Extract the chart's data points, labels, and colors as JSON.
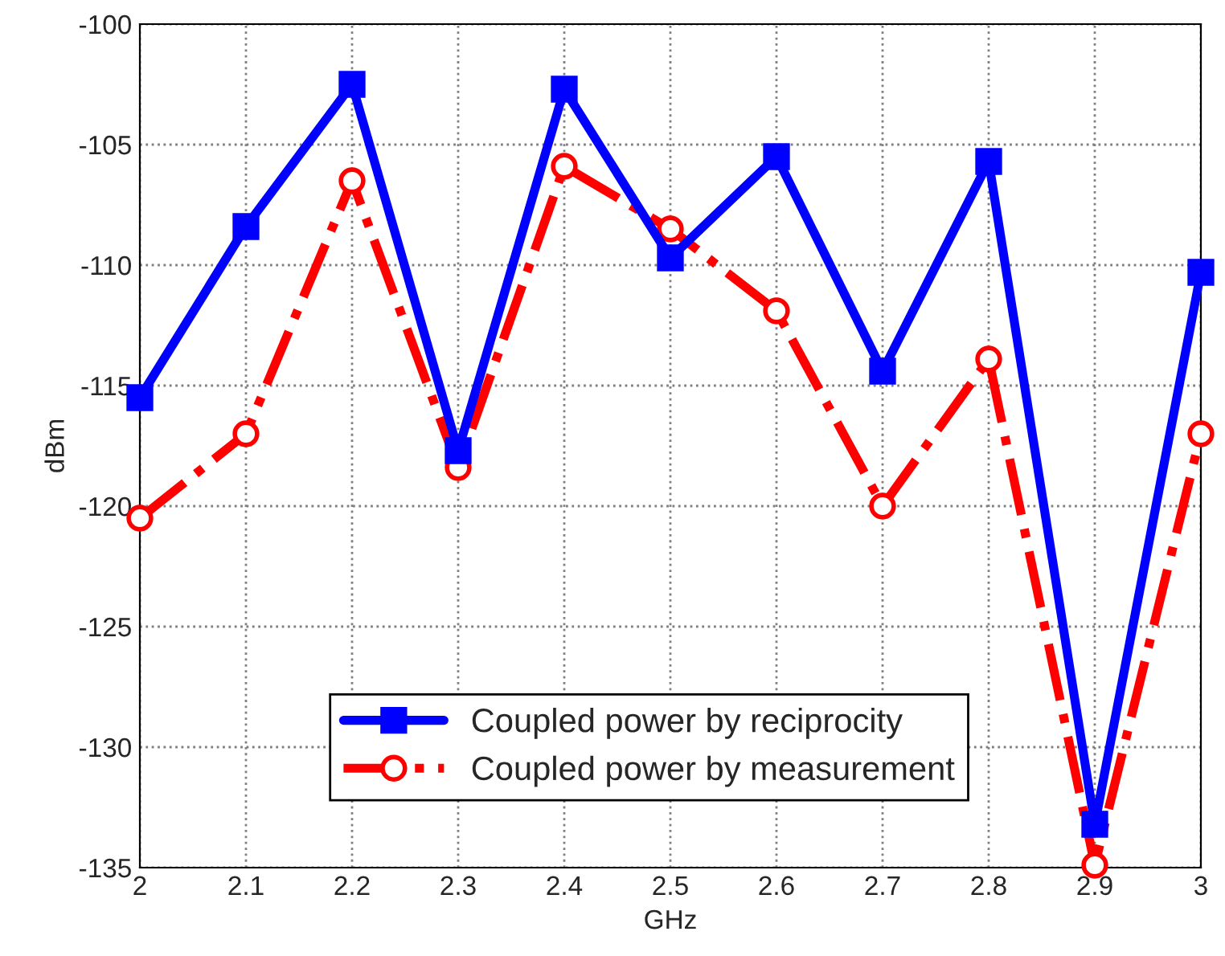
{
  "chart_data": {
    "type": "line",
    "xlabel": "GHz",
    "ylabel": "dBm",
    "x": [
      2.0,
      2.1,
      2.2,
      2.3,
      2.4,
      2.5,
      2.6,
      2.7,
      2.8,
      2.9,
      3.0
    ],
    "series": [
      {
        "name": "Coupled power by reciprocity",
        "color": "#0000ff",
        "marker": "square",
        "line_style": "solid",
        "values": [
          -115.5,
          -108.4,
          -102.5,
          -117.7,
          -102.7,
          -109.7,
          -105.5,
          -114.4,
          -105.7,
          -133.2,
          -110.3
        ]
      },
      {
        "name": "Coupled power by measurement",
        "color": "#ff0000",
        "marker": "circle",
        "line_style": "dashdot",
        "values": [
          -120.5,
          -117,
          -106.5,
          -118.4,
          -105.9,
          -108.5,
          -111.9,
          -120,
          -113.9,
          -134.9,
          -117
        ]
      }
    ],
    "xlim": [
      2,
      3
    ],
    "xticks": [
      2,
      2.1,
      2.2,
      2.3,
      2.4,
      2.5,
      2.6,
      2.7,
      2.8,
      2.9,
      3
    ],
    "ylim": [
      -135,
      -100
    ],
    "yticks": [
      -135,
      -130,
      -125,
      -120,
      -115,
      -110,
      -105,
      -100
    ],
    "grid": true,
    "legend": "bottom"
  }
}
